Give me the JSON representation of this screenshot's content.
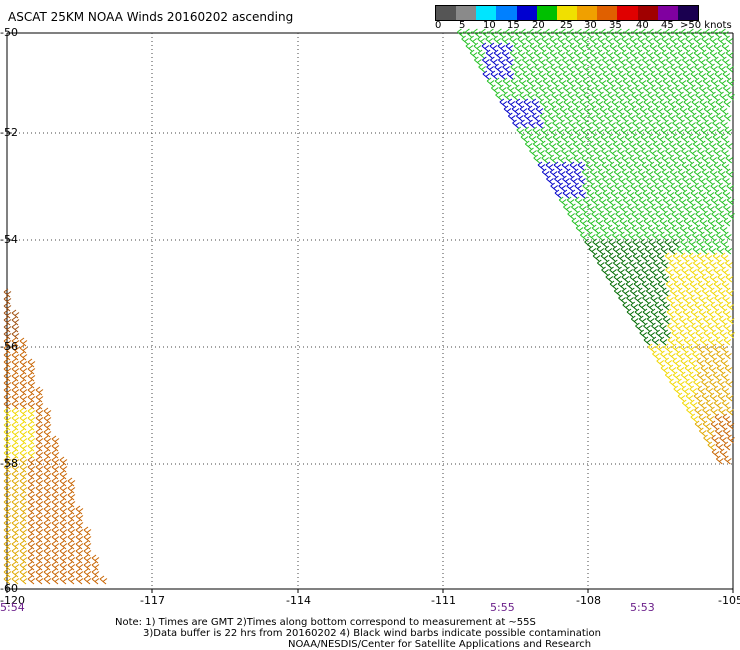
{
  "title": "ASCAT 25KM NOAA Winds 20160202 ascending",
  "scale": {
    "labels": [
      "0",
      "5",
      "10",
      "15",
      "20",
      "25",
      "30",
      "35",
      "40",
      "45"
    ],
    "unit_label": ">50 knots",
    "colors": [
      "#555555",
      "#8a8a8a",
      "#00e5ff",
      "#0080ff",
      "#0000d0",
      "#00c000",
      "#f0e000",
      "#f0a000",
      "#e06000",
      "#e00000",
      "#a00000",
      "#8000a0",
      "#1a0050"
    ]
  },
  "y_labels": [
    "-50",
    "-52",
    "-54",
    "-56",
    "-58",
    "-60"
  ],
  "x_labels": [
    "-120",
    "-117",
    "-114",
    "-111",
    "-108",
    "-105"
  ],
  "time_labels": [
    "5:54",
    "5:55",
    "5:53"
  ],
  "notes": {
    "line1": "Note: 1) Times are GMT 2)Times along bottom correspond to measurement at ~55S",
    "line2": "3)Data buffer is 22 hrs from 20160202 4) Black wind barbs indicate possible contamination",
    "line3": "NOAA/NESDIS/Center for Satellite Applications and Research"
  },
  "wind_color_legend": {
    "low_green": "#22c022",
    "dark_green": "#006a00",
    "blue": "#0000c8",
    "yellow": "#f2d800",
    "gold": "#e0a800",
    "orange": "#c86400",
    "brown": "#a05010"
  }
}
